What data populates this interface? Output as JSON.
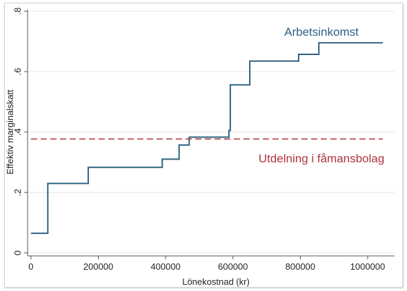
{
  "chart_data": {
    "type": "line",
    "title": "",
    "xlabel": "Lönekostnad (kr)",
    "ylabel": "Effektiv marginalskatt",
    "xlim": [
      -10000,
      1080000
    ],
    "ylim": [
      -0.01,
      0.805
    ],
    "x_ticks": [
      0,
      200000,
      400000,
      600000,
      800000,
      1000000
    ],
    "x_tick_labels": [
      "0",
      "200000",
      "400000",
      "600000",
      "800000",
      "1000000"
    ],
    "y_ticks": [
      0,
      0.2,
      0.4,
      0.6,
      0.8
    ],
    "y_tick_labels": [
      "0",
      ".2",
      ".4",
      ".6",
      ".8"
    ],
    "grid": true,
    "series": [
      {
        "name": "Arbetsinkomst",
        "color": "#2d6180",
        "style": "step",
        "x": [
          0,
          50000,
          50000,
          170000,
          170000,
          390000,
          390000,
          440000,
          440000,
          470000,
          470000,
          588000,
          588000,
          592000,
          592000,
          650000,
          650000,
          795000,
          795000,
          855000,
          855000,
          1045000
        ],
        "y": [
          0.065,
          0.065,
          0.23,
          0.23,
          0.283,
          0.283,
          0.31,
          0.31,
          0.357,
          0.357,
          0.383,
          0.383,
          0.405,
          0.405,
          0.556,
          0.556,
          0.635,
          0.635,
          0.657,
          0.657,
          0.695,
          0.695
        ]
      },
      {
        "name": "Utdelning i fåmansbolag",
        "color": "#b0343c",
        "style": "dashed",
        "x": [
          0,
          1045000
        ],
        "y": [
          0.377,
          0.377
        ]
      }
    ],
    "annotations": [
      {
        "text": "Arbetsinkomst",
        "series": 0
      },
      {
        "text": "Utdelning i fåmansbolag",
        "series": 1
      }
    ]
  },
  "colors": {
    "background": "#ffffff",
    "grid": "#e6e6e6",
    "axis": "#555555"
  }
}
